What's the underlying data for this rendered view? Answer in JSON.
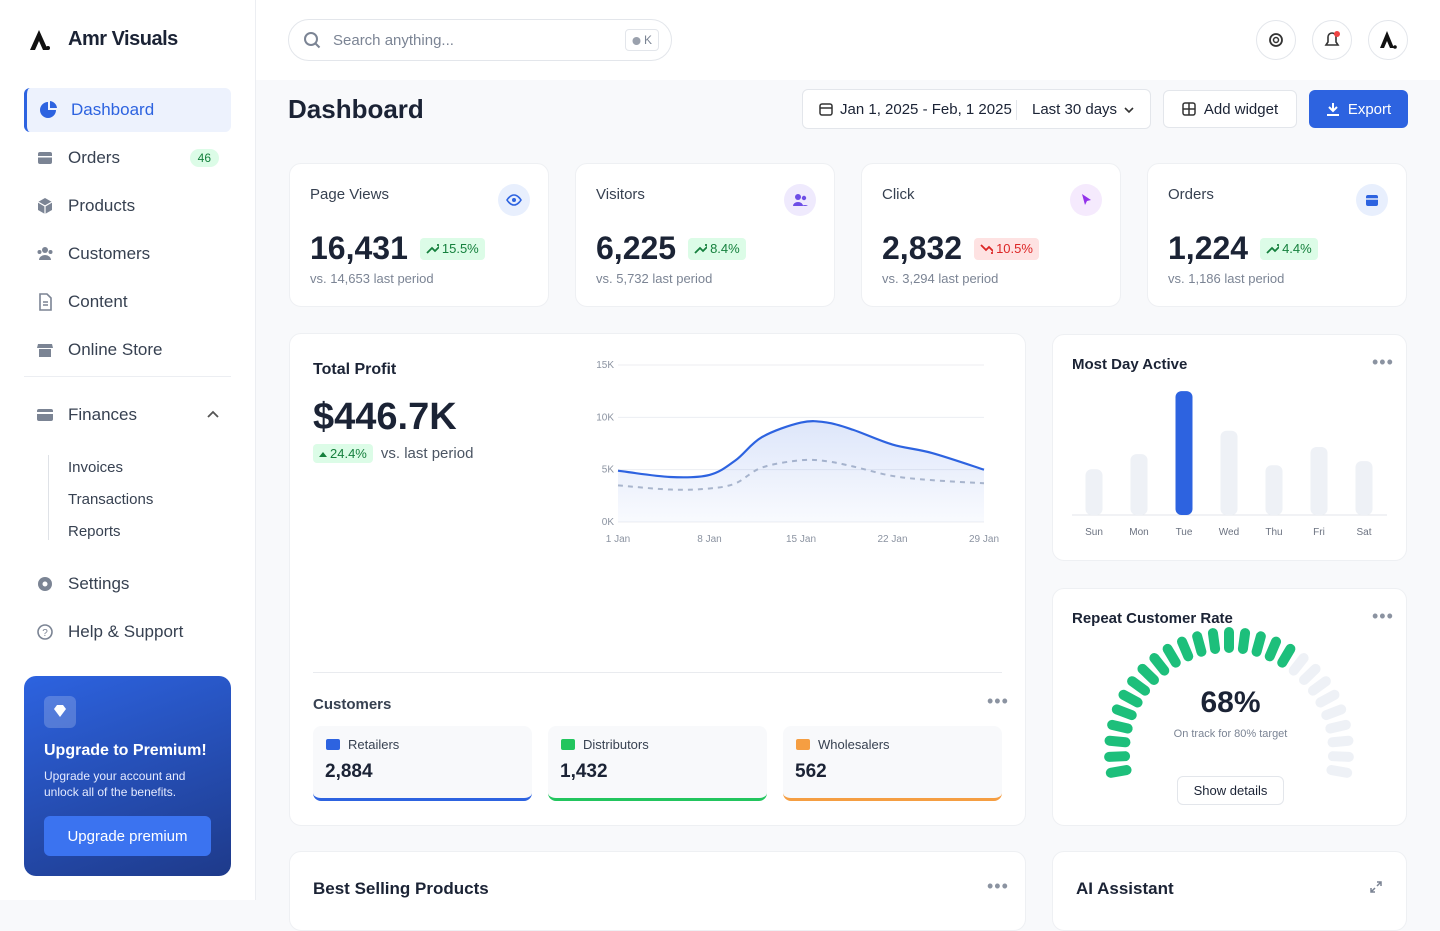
{
  "brand": "Amr Visuals",
  "search": {
    "placeholder": "Search anything...",
    "shortcut": "K"
  },
  "nav": [
    {
      "label": "Dashboard"
    },
    {
      "label": "Orders",
      "badge": 46
    },
    {
      "label": "Products"
    },
    {
      "label": "Customers"
    },
    {
      "label": "Content"
    },
    {
      "label": "Online Store"
    }
  ],
  "finances": {
    "label": "Finances",
    "items": [
      "Invoices",
      "Transactions",
      "Reports"
    ]
  },
  "nav_bottom": [
    {
      "label": "Settings"
    },
    {
      "label": "Help & Support"
    }
  ],
  "premium": {
    "title": "Upgrade to Premium!",
    "text": "Upgrade your account and unlock all of the benefits.",
    "button": "Upgrade premium"
  },
  "header": {
    "title": "Dashboard",
    "date_range": "Jan 1, 2025 - Feb, 1 2025",
    "period": "Last 30 days",
    "add_widget": "Add widget",
    "export": "Export"
  },
  "stats": [
    {
      "label": "Page Views",
      "value": "16,431",
      "change": "15.5%",
      "trend": "up",
      "compare": "vs. 14,653 last period"
    },
    {
      "label": "Visitors",
      "value": "6,225",
      "change": "8.4%",
      "trend": "up",
      "compare": "vs. 5,732 last period"
    },
    {
      "label": "Click",
      "value": "2,832",
      "change": "10.5%",
      "trend": "down",
      "compare": "vs. 3,294 last period"
    },
    {
      "label": "Orders",
      "value": "1,224",
      "change": "4.4%",
      "trend": "up",
      "compare": "vs. 1,186 last period"
    }
  ],
  "profit": {
    "title": "Total Profit",
    "value": "$446.7K",
    "change": "24.4%",
    "compare": "vs. last period"
  },
  "customers": {
    "title": "Customers",
    "items": [
      {
        "label": "Retailers",
        "value": "2,884",
        "color": "#2d63e0"
      },
      {
        "label": "Distributors",
        "value": "1,432",
        "color": "#22c55e"
      },
      {
        "label": "Wholesalers",
        "value": "562",
        "color": "#f59e42"
      }
    ]
  },
  "best_selling": {
    "title": "Best Selling Products"
  },
  "assistant": {
    "title": "AI Assistant"
  },
  "chart_data": [
    {
      "type": "line",
      "x": [
        1,
        5,
        8,
        10,
        12,
        15,
        17,
        19,
        22,
        25,
        29
      ],
      "xlim": [
        1,
        29
      ],
      "xticks": [
        {
          "value": 1,
          "label": "1 Jan"
        },
        {
          "value": 8,
          "label": "8 Jan"
        },
        {
          "value": 15,
          "label": "15 Jan"
        },
        {
          "value": 22,
          "label": "22 Jan"
        },
        {
          "value": 29,
          "label": "29 Jan"
        }
      ],
      "ylim": [
        0,
        15000
      ],
      "yticks": [
        {
          "value": 0,
          "label": "0K"
        },
        {
          "value": 5000,
          "label": "5K"
        },
        {
          "value": 10000,
          "label": "10K"
        },
        {
          "value": 15000,
          "label": "15K"
        }
      ],
      "grid": true,
      "series": [
        {
          "color": "#2d63e0",
          "area": true,
          "values": [
            4900,
            4300,
            4500,
            5900,
            8100,
            9500,
            9500,
            8800,
            7400,
            6600,
            5000
          ]
        },
        {
          "color": "#b3bccb",
          "dashed": true,
          "values": [
            3500,
            3100,
            3200,
            3700,
            5200,
            5900,
            5800,
            5300,
            4400,
            4000,
            3700
          ]
        }
      ]
    },
    {
      "type": "bar",
      "title": "Most Day Active",
      "categories": [
        "Sun",
        "Mon",
        "Tue",
        "Wed",
        "Thu",
        "Fri",
        "Sat"
      ],
      "values": [
        45,
        60,
        122,
        83,
        49,
        67,
        53
      ],
      "ylim": [
        0,
        130
      ],
      "colors": [
        "#eef1f6",
        "#eef1f6",
        "#2d63e0",
        "#eef1f6",
        "#eef1f6",
        "#eef1f6",
        "#eef1f6"
      ]
    },
    {
      "type": "gauge",
      "title": "Repeat Customer Rate",
      "value": 68,
      "value_label": "68%",
      "ylim": [
        0,
        100
      ],
      "subtitle": "On track for 80% target",
      "button": "Show details",
      "color": "#1dbf7b",
      "track_color": "#eef1f6"
    }
  ]
}
